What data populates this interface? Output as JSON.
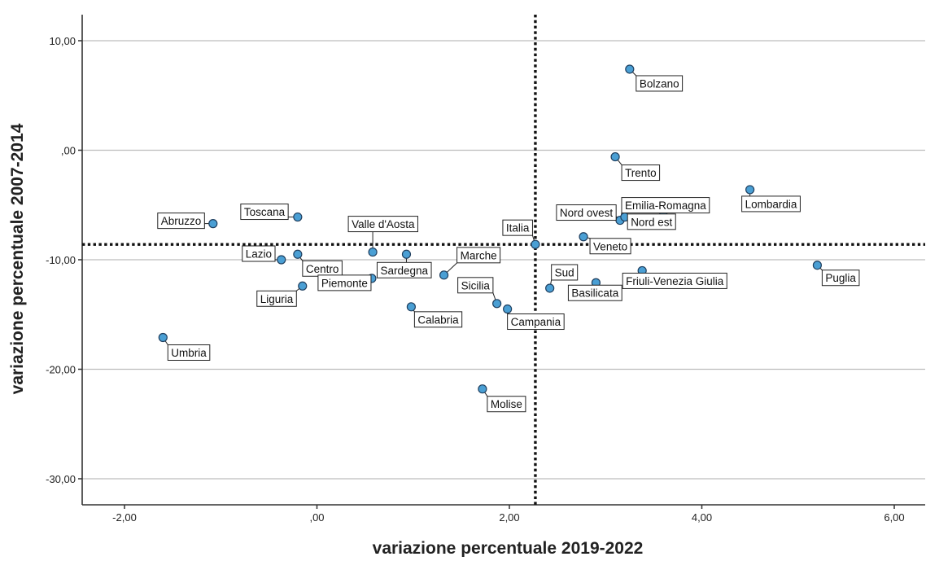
{
  "chart_data": {
    "type": "scatter",
    "title": "",
    "xlabel": "variazione percentuale 2019-2022",
    "ylabel": "variazione percentuale 2007-2014",
    "xlim": [
      -2.5,
      6.2
    ],
    "ylim": [
      -32.5,
      12.5
    ],
    "x_ticks": [
      -2,
      0,
      2,
      4,
      6
    ],
    "x_tick_labels": [
      "-2,00",
      ",00",
      "2,00",
      "4,00",
      "6,00"
    ],
    "y_ticks": [
      10,
      0,
      -10,
      -20,
      -30
    ],
    "y_tick_labels": [
      "10,00",
      ",00",
      "-10,00",
      "-20,00",
      "-30,00"
    ],
    "grid": "horizontal",
    "reference_lines": {
      "x": 2.27,
      "y": -8.6,
      "style": "dotted"
    },
    "point_color": "#4a9fd4",
    "points": [
      {
        "name": "Bolzano",
        "x": 3.25,
        "y": 7.4
      },
      {
        "name": "Trento",
        "x": 3.1,
        "y": -0.6
      },
      {
        "name": "Emilia-Romagna",
        "x": 3.15,
        "y": -6.4
      },
      {
        "name": "Lombardia",
        "x": 4.5,
        "y": -3.6
      },
      {
        "name": "Nord est",
        "x": 3.6,
        "y": -5.6
      },
      {
        "name": "Nord ovest",
        "x": 3.2,
        "y": -6.1
      },
      {
        "name": "Veneto",
        "x": 2.77,
        "y": -7.9
      },
      {
        "name": "Italia",
        "x": 2.27,
        "y": -8.6
      },
      {
        "name": "Abruzzo",
        "x": -1.08,
        "y": -6.7
      },
      {
        "name": "Toscana",
        "x": -0.2,
        "y": -6.1
      },
      {
        "name": "Lazio",
        "x": -0.37,
        "y": -10.0
      },
      {
        "name": "Centro",
        "x": -0.2,
        "y": -9.5
      },
      {
        "name": "Liguria",
        "x": -0.15,
        "y": -12.4
      },
      {
        "name": "Valle d'Aosta",
        "x": 0.58,
        "y": -9.3
      },
      {
        "name": "Sardegna",
        "x": 0.93,
        "y": -9.5
      },
      {
        "name": "Piemonte",
        "x": 0.57,
        "y": -11.7
      },
      {
        "name": "Marche",
        "x": 1.32,
        "y": -11.4
      },
      {
        "name": "Calabria",
        "x": 0.98,
        "y": -14.3
      },
      {
        "name": "Sicilia",
        "x": 1.87,
        "y": -14.0
      },
      {
        "name": "Campania",
        "x": 1.98,
        "y": -14.5
      },
      {
        "name": "Sud",
        "x": 2.42,
        "y": -12.6
      },
      {
        "name": "Basilicata",
        "x": 2.9,
        "y": -12.1
      },
      {
        "name": "Friuli-Venezia Giulia",
        "x": 3.38,
        "y": -11.0
      },
      {
        "name": "Puglia",
        "x": 5.2,
        "y": -10.5
      },
      {
        "name": "Umbria",
        "x": -1.6,
        "y": -17.1
      },
      {
        "name": "Molise",
        "x": 1.72,
        "y": -21.8
      }
    ]
  }
}
